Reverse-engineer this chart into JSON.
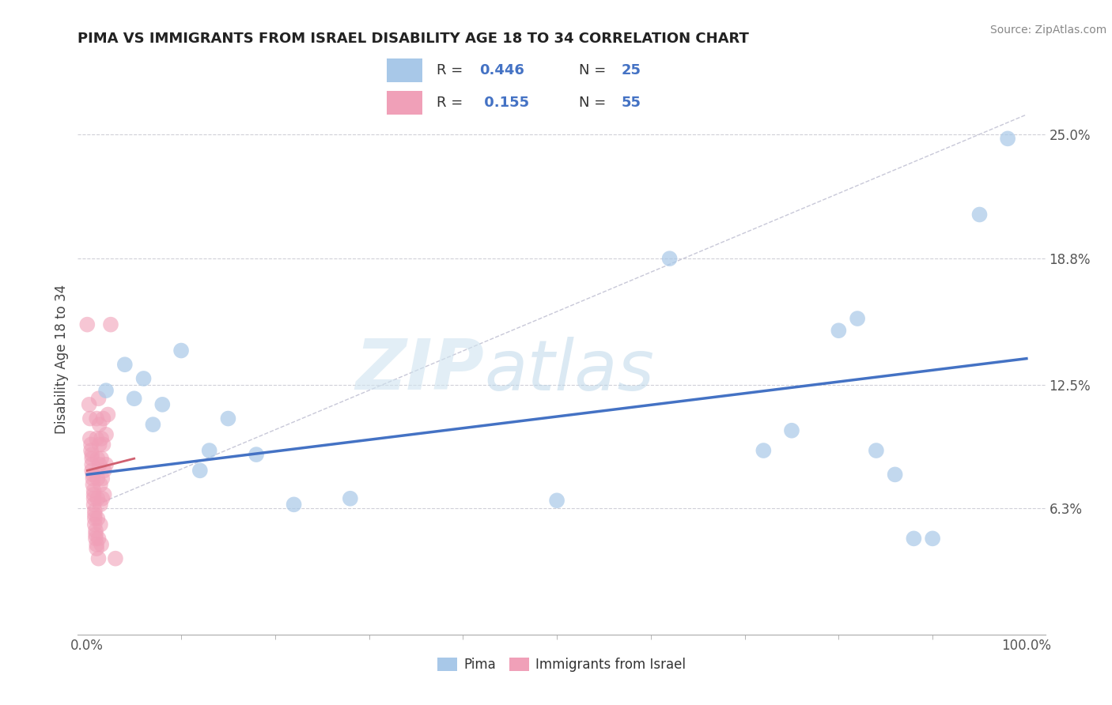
{
  "title": "PIMA VS IMMIGRANTS FROM ISRAEL DISABILITY AGE 18 TO 34 CORRELATION CHART",
  "source": "Source: ZipAtlas.com",
  "ylabel": "Disability Age 18 to 34",
  "ytick_labels": [
    "6.3%",
    "12.5%",
    "18.8%",
    "25.0%"
  ],
  "ytick_values": [
    0.063,
    0.125,
    0.188,
    0.25
  ],
  "xlim": [
    -0.01,
    1.02
  ],
  "ylim": [
    0.0,
    0.275
  ],
  "legend_blue_label": "Pima",
  "legend_pink_label": "Immigrants from Israel",
  "R_blue": "0.446",
  "N_blue": "25",
  "R_pink": "0.155",
  "N_pink": "55",
  "blue_color": "#a8c8e8",
  "pink_color": "#f0a0b8",
  "trendline_blue": "#4472c4",
  "trendline_pink": "#d06070",
  "watermark_zip": "ZIP",
  "watermark_atlas": "atlas",
  "blue_points": [
    [
      0.02,
      0.122
    ],
    [
      0.04,
      0.135
    ],
    [
      0.05,
      0.118
    ],
    [
      0.06,
      0.128
    ],
    [
      0.07,
      0.105
    ],
    [
      0.08,
      0.115
    ],
    [
      0.1,
      0.142
    ],
    [
      0.12,
      0.082
    ],
    [
      0.13,
      0.092
    ],
    [
      0.15,
      0.108
    ],
    [
      0.18,
      0.09
    ],
    [
      0.22,
      0.065
    ],
    [
      0.28,
      0.068
    ],
    [
      0.5,
      0.067
    ],
    [
      0.62,
      0.188
    ],
    [
      0.72,
      0.092
    ],
    [
      0.75,
      0.102
    ],
    [
      0.8,
      0.152
    ],
    [
      0.82,
      0.158
    ],
    [
      0.84,
      0.092
    ],
    [
      0.86,
      0.08
    ],
    [
      0.88,
      0.048
    ],
    [
      0.9,
      0.048
    ],
    [
      0.95,
      0.21
    ],
    [
      0.98,
      0.248
    ]
  ],
  "pink_points": [
    [
      0.0,
      0.155
    ],
    [
      0.002,
      0.115
    ],
    [
      0.003,
      0.108
    ],
    [
      0.003,
      0.098
    ],
    [
      0.004,
      0.095
    ],
    [
      0.004,
      0.092
    ],
    [
      0.005,
      0.09
    ],
    [
      0.005,
      0.088
    ],
    [
      0.005,
      0.085
    ],
    [
      0.005,
      0.082
    ],
    [
      0.006,
      0.08
    ],
    [
      0.006,
      0.078
    ],
    [
      0.006,
      0.075
    ],
    [
      0.007,
      0.072
    ],
    [
      0.007,
      0.07
    ],
    [
      0.007,
      0.068
    ],
    [
      0.007,
      0.065
    ],
    [
      0.008,
      0.062
    ],
    [
      0.008,
      0.06
    ],
    [
      0.008,
      0.058
    ],
    [
      0.008,
      0.055
    ],
    [
      0.009,
      0.052
    ],
    [
      0.009,
      0.05
    ],
    [
      0.009,
      0.048
    ],
    [
      0.01,
      0.045
    ],
    [
      0.01,
      0.043
    ],
    [
      0.01,
      0.108
    ],
    [
      0.01,
      0.098
    ],
    [
      0.011,
      0.088
    ],
    [
      0.011,
      0.078
    ],
    [
      0.011,
      0.068
    ],
    [
      0.011,
      0.058
    ],
    [
      0.012,
      0.048
    ],
    [
      0.012,
      0.038
    ],
    [
      0.012,
      0.118
    ],
    [
      0.013,
      0.105
    ],
    [
      0.013,
      0.095
    ],
    [
      0.013,
      0.085
    ],
    [
      0.014,
      0.075
    ],
    [
      0.014,
      0.065
    ],
    [
      0.014,
      0.055
    ],
    [
      0.015,
      0.045
    ],
    [
      0.015,
      0.098
    ],
    [
      0.015,
      0.088
    ],
    [
      0.016,
      0.078
    ],
    [
      0.016,
      0.068
    ],
    [
      0.017,
      0.108
    ],
    [
      0.017,
      0.095
    ],
    [
      0.018,
      0.082
    ],
    [
      0.018,
      0.07
    ],
    [
      0.02,
      0.1
    ],
    [
      0.02,
      0.085
    ],
    [
      0.022,
      0.11
    ],
    [
      0.025,
      0.155
    ],
    [
      0.03,
      0.038
    ]
  ],
  "blue_trend_x": [
    0.0,
    1.0
  ],
  "blue_trend_y": [
    0.08,
    0.138
  ],
  "pink_trend_x": [
    0.0,
    0.05
  ],
  "pink_trend_y": [
    0.082,
    0.088
  ],
  "dashed_line_color": "#c8c8d8",
  "background_color": "#ffffff",
  "grid_color": "#d0d0d8"
}
